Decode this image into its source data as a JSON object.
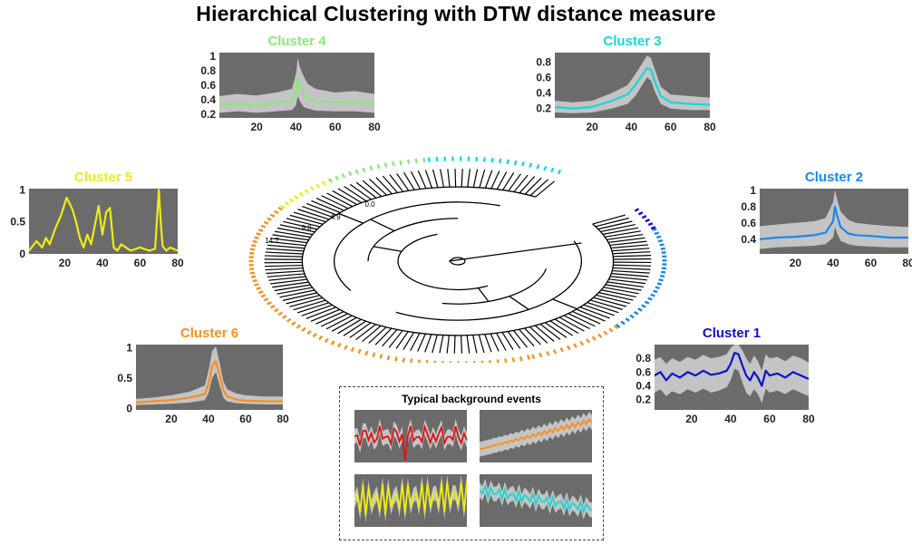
{
  "title": "Hierarchical Clustering with DTW distance measure",
  "chart_data": [
    {
      "type": "line",
      "title": "Cluster 4",
      "color": "#88e87a",
      "xlim": [
        1,
        80
      ],
      "ylim": [
        0.15,
        1.05
      ],
      "xticks": [
        20,
        40,
        60,
        80
      ],
      "yticks": [
        0.2,
        0.4,
        0.6,
        0.8,
        1
      ],
      "mean": {
        "x": [
          1,
          10,
          20,
          30,
          38,
          40,
          41,
          42,
          44,
          46,
          50,
          60,
          70,
          80
        ],
        "y": [
          0.33,
          0.35,
          0.33,
          0.36,
          0.38,
          0.5,
          0.72,
          0.6,
          0.48,
          0.42,
          0.38,
          0.36,
          0.37,
          0.35
        ]
      },
      "band": {
        "lower": [
          0.22,
          0.24,
          0.22,
          0.24,
          0.26,
          0.32,
          0.45,
          0.38,
          0.3,
          0.28,
          0.25,
          0.24,
          0.24,
          0.22
        ],
        "upper": [
          0.45,
          0.48,
          0.46,
          0.5,
          0.55,
          0.75,
          0.98,
          0.85,
          0.72,
          0.62,
          0.55,
          0.5,
          0.52,
          0.48
        ]
      }
    },
    {
      "type": "line",
      "title": "Cluster 3",
      "color": "#17d7d7",
      "xlim": [
        1,
        80
      ],
      "ylim": [
        0.08,
        0.92
      ],
      "xticks": [
        20,
        40,
        60,
        80
      ],
      "yticks": [
        0.2,
        0.4,
        0.6,
        0.8
      ],
      "mean": {
        "x": [
          1,
          10,
          20,
          30,
          38,
          42,
          46,
          48,
          50,
          52,
          55,
          60,
          70,
          80
        ],
        "y": [
          0.22,
          0.2,
          0.22,
          0.3,
          0.38,
          0.5,
          0.65,
          0.72,
          0.7,
          0.55,
          0.36,
          0.28,
          0.26,
          0.25
        ]
      },
      "band": {
        "lower": [
          0.15,
          0.14,
          0.15,
          0.2,
          0.26,
          0.36,
          0.52,
          0.6,
          0.56,
          0.42,
          0.26,
          0.2,
          0.18,
          0.18
        ],
        "upper": [
          0.3,
          0.28,
          0.3,
          0.4,
          0.5,
          0.64,
          0.8,
          0.88,
          0.85,
          0.7,
          0.48,
          0.38,
          0.36,
          0.34
        ]
      }
    },
    {
      "type": "line",
      "title": "Cluster 5",
      "color": "#ecec17",
      "xlim": [
        1,
        80
      ],
      "ylim": [
        0,
        1.02
      ],
      "xticks": [
        20,
        40,
        60,
        80
      ],
      "yticks": [
        0,
        0.5,
        1
      ],
      "mean": {
        "x": [
          1,
          5,
          8,
          10,
          12,
          15,
          18,
          21,
          24,
          26,
          28,
          30,
          32,
          34,
          36,
          38,
          40,
          42,
          44,
          46,
          48,
          50,
          55,
          60,
          65,
          68,
          70,
          71,
          72,
          74,
          76,
          80
        ],
        "y": [
          0.05,
          0.2,
          0.1,
          0.25,
          0.15,
          0.4,
          0.6,
          0.88,
          0.7,
          0.5,
          0.25,
          0.1,
          0.3,
          0.15,
          0.45,
          0.75,
          0.3,
          0.65,
          0.72,
          0.1,
          0.05,
          0.15,
          0.05,
          0.1,
          0.05,
          0.08,
          1.0,
          0.5,
          0.12,
          0.05,
          0.1,
          0.05
        ]
      }
    },
    {
      "type": "line",
      "title": "Cluster 2",
      "color": "#1a88f0",
      "xlim": [
        1,
        80
      ],
      "ylim": [
        0.22,
        1.02
      ],
      "xticks": [
        20,
        40,
        60,
        80
      ],
      "yticks": [
        0.4,
        0.6,
        0.8,
        1
      ],
      "mean": {
        "x": [
          1,
          10,
          20,
          30,
          36,
          40,
          41,
          42,
          44,
          48,
          52,
          60,
          70,
          80
        ],
        "y": [
          0.4,
          0.42,
          0.43,
          0.45,
          0.48,
          0.62,
          0.8,
          0.7,
          0.55,
          0.47,
          0.45,
          0.44,
          0.42,
          0.42
        ]
      },
      "band": {
        "lower": [
          0.28,
          0.3,
          0.31,
          0.32,
          0.34,
          0.42,
          0.55,
          0.48,
          0.38,
          0.34,
          0.32,
          0.31,
          0.3,
          0.3
        ],
        "upper": [
          0.56,
          0.58,
          0.6,
          0.62,
          0.66,
          0.85,
          1.0,
          0.9,
          0.74,
          0.64,
          0.6,
          0.58,
          0.56,
          0.55
        ]
      }
    },
    {
      "type": "line",
      "title": "Cluster 6",
      "color": "#f59020",
      "xlim": [
        1,
        80
      ],
      "ylim": [
        -0.02,
        1.05
      ],
      "xticks": [
        20,
        40,
        60,
        80
      ],
      "yticks": [
        0,
        0.5,
        1
      ],
      "mean": {
        "x": [
          1,
          10,
          20,
          30,
          38,
          40,
          42,
          44,
          46,
          48,
          50,
          55,
          60,
          70,
          80
        ],
        "y": [
          0.1,
          0.12,
          0.14,
          0.18,
          0.24,
          0.4,
          0.7,
          0.78,
          0.55,
          0.3,
          0.2,
          0.15,
          0.13,
          0.12,
          0.12
        ]
      },
      "band": {
        "lower": [
          0.06,
          0.07,
          0.08,
          0.1,
          0.14,
          0.25,
          0.5,
          0.6,
          0.38,
          0.18,
          0.12,
          0.09,
          0.08,
          0.07,
          0.07
        ],
        "upper": [
          0.16,
          0.18,
          0.22,
          0.28,
          0.38,
          0.62,
          0.95,
          1.02,
          0.75,
          0.45,
          0.32,
          0.25,
          0.22,
          0.2,
          0.2
        ]
      }
    },
    {
      "type": "line",
      "title": "Cluster 1",
      "color": "#1010d0",
      "xlim": [
        1,
        80
      ],
      "ylim": [
        0.05,
        1.0
      ],
      "xticks": [
        20,
        40,
        60,
        80
      ],
      "yticks": [
        0.2,
        0.4,
        0.6,
        0.8
      ],
      "mean": {
        "x": [
          1,
          4,
          7,
          10,
          14,
          18,
          22,
          26,
          30,
          34,
          38,
          40,
          42,
          44,
          46,
          48,
          50,
          52,
          54,
          56,
          58,
          60,
          64,
          68,
          72,
          76,
          80
        ],
        "y": [
          0.55,
          0.6,
          0.48,
          0.58,
          0.52,
          0.6,
          0.55,
          0.62,
          0.56,
          0.58,
          0.62,
          0.72,
          0.88,
          0.86,
          0.7,
          0.55,
          0.48,
          0.6,
          0.52,
          0.4,
          0.62,
          0.55,
          0.58,
          0.52,
          0.6,
          0.55,
          0.5
        ]
      },
      "band": {
        "lower": [
          0.3,
          0.35,
          0.25,
          0.32,
          0.28,
          0.35,
          0.3,
          0.36,
          0.3,
          0.33,
          0.38,
          0.48,
          0.65,
          0.62,
          0.45,
          0.3,
          0.25,
          0.35,
          0.28,
          0.15,
          0.36,
          0.3,
          0.33,
          0.28,
          0.35,
          0.3,
          0.25
        ],
        "upper": [
          0.78,
          0.82,
          0.72,
          0.8,
          0.75,
          0.82,
          0.78,
          0.85,
          0.8,
          0.82,
          0.86,
          0.95,
          1.0,
          1.0,
          0.92,
          0.8,
          0.72,
          0.84,
          0.76,
          0.62,
          0.86,
          0.8,
          0.82,
          0.76,
          0.84,
          0.8,
          0.74
        ]
      }
    }
  ],
  "dendrogram": {
    "levels": [
      "14.7",
      "9.8",
      "4.9",
      "0.0"
    ],
    "cluster_colors": [
      "#f59020",
      "#ecec17",
      "#88e87a",
      "#17d7d7",
      "#1a88f0",
      "#1010d0"
    ]
  },
  "background_events": {
    "title": "Typical background events",
    "samples": [
      {
        "color": "#e01010",
        "shape": "noisy-flat"
      },
      {
        "color": "#f59020",
        "shape": "rising"
      },
      {
        "color": "#ecec17",
        "shape": "oscillating"
      },
      {
        "color": "#17d7d7",
        "shape": "noisy-decline"
      }
    ]
  }
}
